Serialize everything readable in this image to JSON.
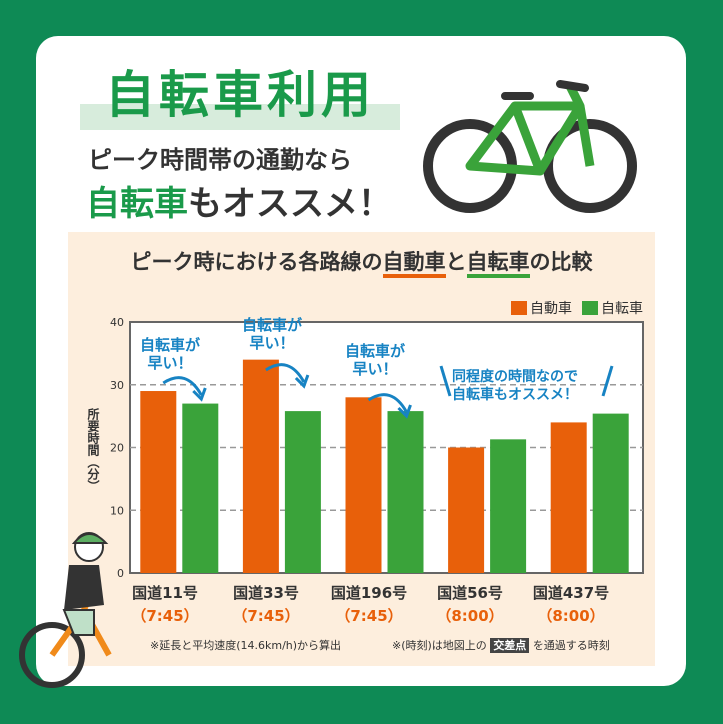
{
  "header": {
    "title": "自転車利用",
    "subtitle_line1": "ピーク時間帯の通勤なら",
    "subtitle_line2_highlight": "自転車",
    "subtitle_line2_rest": "もオススメ！"
  },
  "chart_title": {
    "pre": "ピーク時における各路線の",
    "car": "自動車",
    "mid": "と",
    "bike": "自転車",
    "post": "の比較"
  },
  "chart_data": {
    "type": "bar",
    "title": "ピーク時における各路線の自動車と自転車の比較",
    "categories": [
      "国道11号",
      "国道33号",
      "国道196号",
      "国道56号",
      "国道437号"
    ],
    "category_times": [
      "（7:45）",
      "（7:45）",
      "（7:45）",
      "（8:00）",
      "（8:00）"
    ],
    "series": [
      {
        "name": "自動車",
        "color": "#e8600a",
        "values": [
          29,
          34,
          28,
          20,
          24
        ]
      },
      {
        "name": "自転車",
        "color": "#3aa33a",
        "values": [
          27,
          25.8,
          25.8,
          21.3,
          25.4
        ]
      }
    ],
    "ylabel": "所要時間（分）",
    "ylim": [
      0,
      40
    ],
    "yticks": [
      0,
      10,
      20,
      30,
      40
    ],
    "grid": true,
    "legend": "top-right"
  },
  "annotations": {
    "faster": [
      "自転車が",
      "早い！"
    ],
    "similar": [
      "同程度の時間なので",
      "自転車もオススメ！"
    ]
  },
  "notes": {
    "left": "※延長と平均速度(14.6km/h)から算出",
    "right_pre": "※(時刻)は地図上の",
    "right_box": "交差点",
    "right_post": "を通過する時刻"
  }
}
